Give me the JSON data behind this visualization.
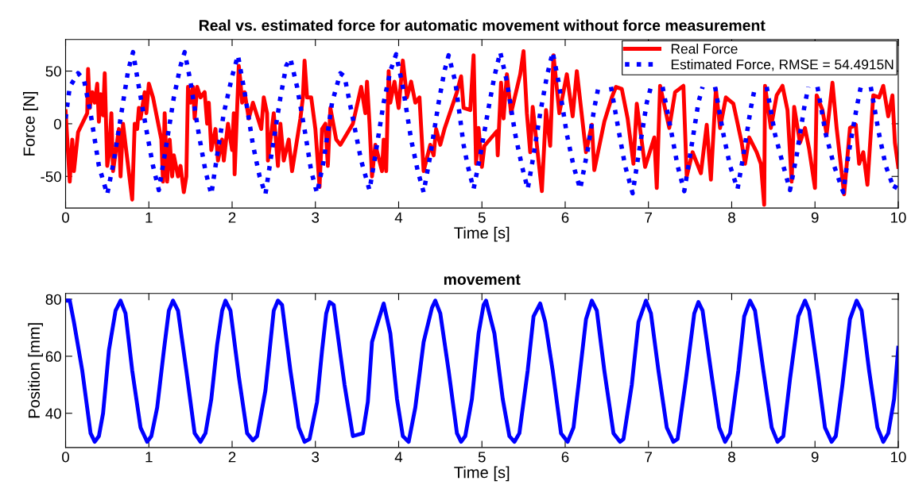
{
  "chart_data": [
    {
      "type": "line",
      "title": "Real vs. estimated force for automatic movement without force measurement",
      "xlabel": "Time [s]",
      "ylabel": "Force [N]",
      "xlim": [
        0,
        10
      ],
      "ylim": [
        -80,
        80
      ],
      "xticks": [
        0,
        1,
        2,
        3,
        4,
        5,
        6,
        7,
        8,
        9,
        10
      ],
      "yticks": [
        -50,
        0,
        50
      ],
      "legend": "top right",
      "grid": false,
      "marker": "none",
      "series": [
        {
          "name": "Real Force",
          "color": "#ff0000",
          "line_style": "solid",
          "x": [
            0,
            0.05,
            0.08,
            0.1,
            0.15,
            0.26,
            0.27,
            0.29,
            0.32,
            0.35,
            0.38,
            0.4,
            0.42,
            0.45,
            0.47,
            0.5,
            0.52,
            0.55,
            0.57,
            0.64,
            0.66,
            0.69,
            0.72,
            0.8,
            0.83,
            0.86,
            0.88,
            0.9,
            0.95,
            0.97,
            1.0,
            1.05,
            1.1,
            1.15,
            1.17,
            1.19,
            1.22,
            1.25,
            1.28,
            1.3,
            1.35,
            1.38,
            1.42,
            1.45,
            1.47,
            1.5,
            1.53,
            1.55,
            1.58,
            1.62,
            1.67,
            1.7,
            1.72,
            1.75,
            1.8,
            1.83,
            1.88,
            1.9,
            1.95,
            2.0,
            2.02,
            2.03,
            2.08,
            2.1,
            2.12,
            2.15,
            2.2,
            2.25,
            2.35,
            2.38,
            2.42,
            2.43,
            2.5,
            2.55,
            2.58,
            2.62,
            2.68,
            2.72,
            2.78,
            2.82,
            2.85,
            2.87,
            2.9,
            2.95,
            3.0,
            3.05,
            3.08,
            3.12,
            3.15,
            3.18,
            3.25,
            3.3,
            3.45,
            3.55,
            3.6,
            3.62,
            3.65,
            3.68,
            3.72,
            3.8,
            3.82,
            3.85,
            3.88,
            3.9,
            3.95,
            4.0,
            4.05,
            4.1,
            4.15,
            4.2,
            4.25,
            4.3,
            4.38,
            4.42,
            4.45,
            4.5,
            4.55,
            4.7,
            4.75,
            4.78,
            4.86,
            4.9,
            4.93,
            4.96,
            5.0,
            5.03,
            5.18,
            5.19,
            5.23,
            5.26,
            5.3,
            5.35,
            5.46,
            5.5,
            5.54,
            5.58,
            5.61,
            5.72,
            5.77,
            5.82,
            5.86,
            5.93,
            6.02,
            6.09,
            6.14,
            6.25,
            6.32,
            6.35,
            6.47,
            6.56,
            6.61,
            6.68,
            6.75,
            6.82,
            6.86,
            6.96,
            7.07,
            7.1,
            7.14,
            7.25,
            7.32,
            7.42,
            7.46,
            7.53,
            7.63,
            7.7,
            7.75,
            7.81,
            7.86,
            7.93,
            8.02,
            8.12,
            8.16,
            8.21,
            8.3,
            8.35,
            8.39,
            8.4,
            8.47,
            8.54,
            8.61,
            8.67,
            8.72,
            8.75,
            8.82,
            8.88,
            8.93,
            9.0,
            9.02,
            9.09,
            9.14,
            9.21,
            9.26,
            9.35,
            9.42,
            9.49,
            9.53,
            9.58,
            9.63,
            9.7,
            9.77,
            9.82,
            9.88,
            9.93,
            9.96,
            10
          ],
          "values": [
            12,
            -55,
            -15,
            -45,
            -8,
            10,
            52,
            15,
            30,
            20,
            38,
            2,
            28,
            8,
            48,
            -40,
            -30,
            10,
            -45,
            -5,
            -50,
            0,
            -20,
            -72,
            0,
            -5,
            15,
            5,
            30,
            10,
            38,
            25,
            5,
            -15,
            -55,
            10,
            -55,
            -15,
            -50,
            -30,
            -50,
            -40,
            -65,
            -50,
            35,
            20,
            35,
            5,
            35,
            25,
            30,
            0,
            20,
            -25,
            -5,
            -35,
            -15,
            -35,
            0,
            -25,
            10,
            -48,
            55,
            40,
            20,
            30,
            5,
            20,
            -5,
            25,
            10,
            -35,
            10,
            -40,
            0,
            -35,
            -15,
            -45,
            -15,
            5,
            25,
            60,
            25,
            25,
            -5,
            -60,
            -5,
            0,
            -40,
            15,
            -15,
            -20,
            0,
            35,
            10,
            40,
            0,
            -50,
            -20,
            -45,
            -15,
            -45,
            50,
            20,
            40,
            15,
            60,
            25,
            40,
            20,
            25,
            -45,
            -20,
            -30,
            -5,
            -20,
            -5,
            30,
            45,
            15,
            13,
            65,
            -38,
            -4,
            -41,
            -21,
            -7,
            -30,
            39,
            5,
            47,
            10,
            47,
            69,
            10,
            -27,
            16,
            -64,
            13,
            -21,
            65,
            10,
            47,
            7,
            50,
            -27,
            -1,
            -44,
            2,
            25,
            35,
            33,
            5,
            -38,
            19,
            -41,
            -13,
            -61,
            36,
            -4,
            30,
            36,
            -50,
            -27,
            -47,
            -1,
            -53,
            33,
            -4,
            25,
            19,
            -18,
            -38,
            -13,
            -27,
            -38,
            -77,
            36,
            -4,
            27,
            36,
            13,
            -55,
            16,
            -18,
            -4,
            -24,
            -61,
            27,
            13,
            -10,
            39,
            -4,
            -67,
            -4,
            -1,
            -38,
            -27,
            -58,
            27,
            25,
            36,
            7,
            27,
            -18,
            -41
          ]
        },
        {
          "name": "Estimated Force, RMSE = 54.4915N",
          "color": "#0000ff",
          "line_style": "dotted",
          "x": [
            0,
            0.05,
            0.15,
            0.22,
            0.3,
            0.4,
            0.5,
            0.58,
            0.68,
            0.75,
            0.81,
            0.88,
            0.98,
            1.05,
            1.12,
            1.2,
            1.3,
            1.38,
            1.43,
            1.5,
            1.6,
            1.68,
            1.75,
            1.82,
            1.9,
            2.0,
            2.07,
            2.15,
            2.25,
            2.33,
            2.4,
            2.48,
            2.58,
            2.65,
            2.7,
            2.78,
            2.88,
            2.95,
            3.02,
            3.1,
            3.2,
            3.3,
            3.35,
            3.45,
            3.55,
            3.65,
            3.72,
            3.82,
            3.9,
            3.97,
            4.05,
            4.15,
            4.23,
            4.3,
            4.38,
            4.48,
            4.55,
            4.6,
            4.68,
            4.78,
            4.83,
            4.9,
            4.98,
            5.08,
            5.15,
            5.22,
            5.3,
            5.4,
            5.48,
            5.55,
            5.62,
            5.7,
            5.78,
            5.85,
            5.92,
            6.02,
            6.1,
            6.18,
            6.27,
            6.35,
            6.4,
            6.47,
            6.55,
            6.65,
            6.72,
            6.81,
            6.88,
            6.98,
            7.03,
            7.1,
            7.17,
            7.28,
            7.35,
            7.43,
            7.5,
            7.6,
            7.65,
            7.72,
            7.8,
            7.9,
            7.98,
            8.07,
            8.14,
            8.23,
            8.28,
            8.35,
            8.42,
            8.52,
            8.62,
            8.7,
            8.78,
            8.87,
            8.92,
            8.97,
            9.03,
            9.13,
            9.23,
            9.34,
            9.4,
            9.5,
            9.55,
            9.6,
            9.67,
            9.77,
            9.85,
            9.95,
            10
          ],
          "values": [
            5,
            35,
            48,
            42,
            10,
            -40,
            -67,
            -35,
            15,
            50,
            68,
            35,
            -10,
            -40,
            -63,
            -25,
            25,
            55,
            68,
            40,
            -10,
            -45,
            -67,
            -30,
            10,
            45,
            65,
            30,
            -20,
            -50,
            -67,
            -25,
            25,
            55,
            62,
            35,
            -10,
            -45,
            -66,
            -35,
            20,
            48,
            45,
            5,
            -35,
            -63,
            -30,
            20,
            50,
            66,
            35,
            -15,
            -45,
            -65,
            -30,
            20,
            50,
            65,
            40,
            -20,
            -40,
            -62,
            -30,
            15,
            45,
            68,
            40,
            -10,
            -40,
            -62,
            -30,
            10,
            45,
            68,
            40,
            -10,
            -40,
            -62,
            -25,
            15,
            35,
            null,
            35,
            -10,
            -40,
            -66,
            -30,
            20,
            35,
            null,
            35,
            -10,
            -40,
            -64,
            -30,
            20,
            35,
            null,
            35,
            -10,
            -40,
            -62,
            -30,
            15,
            35,
            null,
            35,
            -10,
            -40,
            -63,
            -30,
            15,
            35,
            null,
            35,
            -10,
            -40,
            -65,
            -30,
            15,
            35,
            null,
            35,
            -10,
            -40,
            -62,
            -55
          ]
        }
      ]
    },
    {
      "type": "line",
      "title": "movement",
      "xlabel": "Time [s]",
      "ylabel": "Position [mm]",
      "xlim": [
        0,
        10
      ],
      "ylim": [
        28,
        82
      ],
      "xticks": [
        0,
        1,
        2,
        3,
        4,
        5,
        6,
        7,
        8,
        9,
        10
      ],
      "yticks": [
        40,
        60,
        80
      ],
      "grid": false,
      "marker": "none",
      "legend": false,
      "series": [
        {
          "color": "#0000ff",
          "line_style": "solid",
          "x": [
            0,
            0.05,
            0.1,
            0.2,
            0.3,
            0.35,
            0.4,
            0.45,
            0.52,
            0.6,
            0.66,
            0.72,
            0.8,
            0.9,
            0.98,
            1.03,
            1.1,
            1.18,
            1.24,
            1.29,
            1.35,
            1.45,
            1.55,
            1.62,
            1.68,
            1.75,
            1.82,
            1.88,
            1.92,
            1.98,
            2.08,
            2.18,
            2.25,
            2.3,
            2.4,
            2.45,
            2.5,
            2.55,
            2.6,
            2.7,
            2.8,
            2.87,
            2.93,
            3.02,
            3.08,
            3.13,
            3.17,
            3.22,
            3.35,
            3.45,
            3.57,
            3.63,
            3.68,
            3.73,
            3.82,
            3.9,
            3.98,
            4.05,
            4.12,
            4.2,
            4.3,
            4.4,
            4.44,
            4.5,
            4.6,
            4.7,
            4.75,
            4.8,
            4.88,
            4.96,
            5.02,
            5.05,
            5.15,
            5.25,
            5.33,
            5.39,
            5.45,
            5.55,
            5.62,
            5.7,
            5.76,
            5.85,
            5.95,
            6.03,
            6.1,
            6.18,
            6.25,
            6.32,
            6.38,
            6.47,
            6.58,
            6.66,
            6.7,
            6.8,
            6.88,
            6.97,
            7.03,
            7.12,
            7.22,
            7.3,
            7.35,
            7.45,
            7.55,
            7.6,
            7.65,
            7.75,
            7.85,
            7.92,
            7.98,
            8.08,
            8.15,
            8.22,
            8.28,
            8.38,
            8.48,
            8.55,
            8.62,
            8.7,
            8.8,
            8.88,
            8.93,
            9.03,
            9.12,
            9.2,
            9.25,
            9.33,
            9.42,
            9.5,
            9.56,
            9.65,
            9.75,
            9.82,
            9.88,
            9.95,
            10
          ],
          "values": [
            79.5,
            79.5,
            72,
            55,
            33,
            30,
            32,
            40,
            62,
            76,
            79.5,
            75,
            55,
            35,
            30,
            32,
            42,
            62,
            76,
            79.5,
            76,
            55,
            33,
            30,
            33,
            45,
            64,
            76,
            79.5,
            76,
            53,
            33,
            30.5,
            32,
            48,
            62,
            76,
            79.5,
            78,
            55,
            35,
            30,
            31,
            44,
            62,
            75,
            79,
            78,
            50,
            32,
            33,
            44,
            65,
            70,
            78.5,
            68,
            45,
            32,
            30,
            42,
            65,
            77,
            79.5,
            75,
            55,
            33,
            30,
            32,
            45,
            68,
            78,
            79.5,
            68,
            45,
            32,
            30,
            33,
            55,
            74,
            78.5,
            72,
            55,
            33,
            30,
            35,
            55,
            73,
            79.5,
            76,
            55,
            33,
            30,
            31,
            50,
            72,
            79.5,
            75,
            55,
            35,
            30,
            31,
            52,
            75,
            79,
            76,
            55,
            35,
            30,
            33,
            55,
            74,
            79.5,
            76,
            55,
            35,
            30,
            32,
            52,
            74,
            79.5,
            76,
            55,
            35,
            30,
            32,
            50,
            73,
            79.5,
            76,
            55,
            35,
            30,
            33,
            45,
            63
          ]
        }
      ]
    }
  ]
}
